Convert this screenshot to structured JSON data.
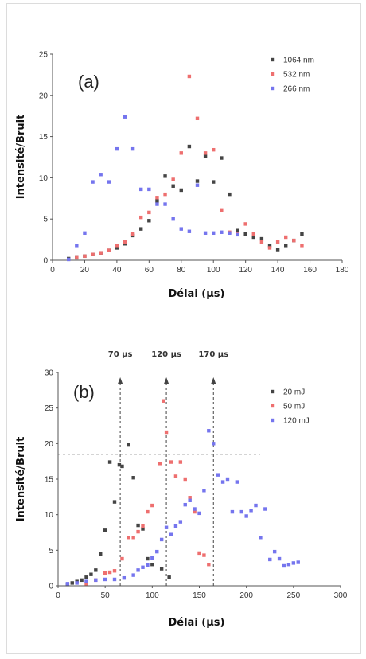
{
  "chart_data": [
    {
      "type": "scatter",
      "panel_label": "(a)",
      "xlabel": "Délai (µs)",
      "ylabel": "Intensité/Bruit",
      "xlim": [
        0,
        180
      ],
      "ylim": [
        0,
        25
      ],
      "xticks": [
        0,
        20,
        40,
        60,
        80,
        100,
        120,
        140,
        160,
        180
      ],
      "yticks": [
        0,
        5,
        10,
        15,
        20,
        25
      ],
      "legend_position": "top-right",
      "series": [
        {
          "name": "1064 nm",
          "color": "#444444",
          "points": [
            [
              10,
              0.2
            ],
            [
              15,
              0.3
            ],
            [
              20,
              0.5
            ],
            [
              25,
              0.7
            ],
            [
              30,
              0.9
            ],
            [
              35,
              1.2
            ],
            [
              40,
              1.5
            ],
            [
              45,
              2.0
            ],
            [
              50,
              3.0
            ],
            [
              55,
              3.8
            ],
            [
              60,
              4.8
            ],
            [
              65,
              7.2
            ],
            [
              70,
              10.2
            ],
            [
              75,
              9.0
            ],
            [
              80,
              8.5
            ],
            [
              85,
              13.8
            ],
            [
              90,
              9.6
            ],
            [
              95,
              12.6
            ],
            [
              100,
              9.5
            ],
            [
              105,
              12.4
            ],
            [
              110,
              8.0
            ],
            [
              115,
              3.6
            ],
            [
              120,
              3.2
            ],
            [
              125,
              2.8
            ],
            [
              130,
              2.6
            ],
            [
              135,
              1.8
            ],
            [
              140,
              1.3
            ],
            [
              145,
              1.8
            ],
            [
              150,
              2.4
            ],
            [
              155,
              3.2
            ]
          ]
        },
        {
          "name": "532 nm",
          "color": "#ee6f6f",
          "points": [
            [
              15,
              0.3
            ],
            [
              20,
              0.5
            ],
            [
              25,
              0.7
            ],
            [
              30,
              0.9
            ],
            [
              35,
              1.2
            ],
            [
              40,
              1.8
            ],
            [
              45,
              2.2
            ],
            [
              50,
              3.2
            ],
            [
              55,
              5.2
            ],
            [
              60,
              5.8
            ],
            [
              65,
              7.6
            ],
            [
              70,
              8.0
            ],
            [
              75,
              9.8
            ],
            [
              80,
              13.0
            ],
            [
              85,
              22.3
            ],
            [
              90,
              17.2
            ],
            [
              95,
              13.0
            ],
            [
              100,
              13.4
            ],
            [
              105,
              6.1
            ],
            [
              110,
              3.4
            ],
            [
              115,
              3.2
            ],
            [
              120,
              4.4
            ],
            [
              125,
              3.2
            ],
            [
              130,
              2.2
            ],
            [
              135,
              1.5
            ],
            [
              140,
              2.2
            ],
            [
              145,
              2.8
            ],
            [
              150,
              2.4
            ],
            [
              155,
              1.8
            ]
          ]
        },
        {
          "name": "266 nm",
          "color": "#7575ee",
          "points": [
            [
              10,
              0.1
            ],
            [
              15,
              1.8
            ],
            [
              20,
              3.3
            ],
            [
              25,
              9.5
            ],
            [
              30,
              10.4
            ],
            [
              35,
              9.5
            ],
            [
              40,
              13.5
            ],
            [
              45,
              17.4
            ],
            [
              50,
              13.5
            ],
            [
              55,
              8.6
            ],
            [
              60,
              8.6
            ],
            [
              65,
              6.8
            ],
            [
              70,
              6.8
            ],
            [
              75,
              5.0
            ],
            [
              80,
              3.8
            ],
            [
              85,
              3.5
            ],
            [
              90,
              9.1
            ],
            [
              95,
              3.3
            ],
            [
              100,
              3.3
            ],
            [
              105,
              3.4
            ],
            [
              110,
              3.3
            ],
            [
              115,
              3.1
            ]
          ]
        }
      ]
    },
    {
      "type": "scatter",
      "panel_label": "(b)",
      "xlabel": "Délai (µs)",
      "ylabel": "Intensité/Bruit",
      "xlim": [
        0,
        300
      ],
      "ylim": [
        0,
        30
      ],
      "xticks": [
        0,
        50,
        100,
        150,
        200,
        250,
        300
      ],
      "yticks": [
        0,
        5,
        10,
        15,
        20,
        25,
        30
      ],
      "legend_position": "top-right",
      "annotations": [
        {
          "label": "70 µs",
          "x": 66
        },
        {
          "label": "120 µs",
          "x": 115
        },
        {
          "label": "170 µs",
          "x": 165
        }
      ],
      "threshold_y": 18.5,
      "series": [
        {
          "name": "20 mJ",
          "color": "#444444",
          "points": [
            [
              10,
              0.2
            ],
            [
              15,
              0.4
            ],
            [
              20,
              0.6
            ],
            [
              25,
              0.8
            ],
            [
              30,
              1.2
            ],
            [
              35,
              1.6
            ],
            [
              40,
              2.2
            ],
            [
              45,
              4.5
            ],
            [
              50,
              7.8
            ],
            [
              55,
              17.4
            ],
            [
              60,
              11.8
            ],
            [
              65,
              17.0
            ],
            [
              68,
              16.8
            ],
            [
              75,
              19.8
            ],
            [
              80,
              15.2
            ],
            [
              85,
              8.5
            ],
            [
              90,
              8.0
            ],
            [
              95,
              3.8
            ],
            [
              100,
              3.0
            ],
            [
              110,
              2.4
            ],
            [
              118,
              1.2
            ]
          ]
        },
        {
          "name": "50 mJ",
          "color": "#ee6f6f",
          "points": [
            [
              30,
              0.3
            ],
            [
              40,
              0.8
            ],
            [
              50,
              1.8
            ],
            [
              55,
              1.9
            ],
            [
              60,
              2.1
            ],
            [
              68,
              3.8
            ],
            [
              75,
              6.8
            ],
            [
              80,
              6.8
            ],
            [
              85,
              7.6
            ],
            [
              90,
              8.4
            ],
            [
              95,
              10.4
            ],
            [
              100,
              11.3
            ],
            [
              108,
              17.2
            ],
            [
              112,
              26.0
            ],
            [
              115,
              21.6
            ],
            [
              120,
              17.4
            ],
            [
              125,
              15.4
            ],
            [
              130,
              17.4
            ],
            [
              135,
              15.0
            ],
            [
              140,
              12.4
            ],
            [
              145,
              10.4
            ],
            [
              150,
              4.6
            ],
            [
              155,
              4.3
            ],
            [
              160,
              3.0
            ]
          ]
        },
        {
          "name": "120 mJ",
          "color": "#7575ee",
          "points": [
            [
              10,
              0.3
            ],
            [
              20,
              0.4
            ],
            [
              30,
              0.6
            ],
            [
              40,
              0.8
            ],
            [
              50,
              0.9
            ],
            [
              60,
              0.9
            ],
            [
              70,
              1.1
            ],
            [
              80,
              1.5
            ],
            [
              85,
              2.2
            ],
            [
              90,
              2.6
            ],
            [
              95,
              2.9
            ],
            [
              100,
              3.9
            ],
            [
              105,
              4.8
            ],
            [
              110,
              6.5
            ],
            [
              115,
              8.2
            ],
            [
              120,
              7.2
            ],
            [
              125,
              8.4
            ],
            [
              130,
              9.0
            ],
            [
              135,
              11.4
            ],
            [
              140,
              12.0
            ],
            [
              145,
              10.8
            ],
            [
              150,
              10.2
            ],
            [
              155,
              13.4
            ],
            [
              160,
              21.8
            ],
            [
              165,
              20.0
            ],
            [
              170,
              15.6
            ],
            [
              175,
              14.6
            ],
            [
              180,
              15.0
            ],
            [
              185,
              10.4
            ],
            [
              190,
              14.6
            ],
            [
              195,
              10.4
            ],
            [
              200,
              9.8
            ],
            [
              205,
              10.6
            ],
            [
              210,
              11.3
            ],
            [
              215,
              6.8
            ],
            [
              220,
              10.8
            ],
            [
              225,
              3.7
            ],
            [
              230,
              4.8
            ],
            [
              235,
              3.8
            ],
            [
              240,
              2.8
            ],
            [
              245,
              3.0
            ],
            [
              250,
              3.2
            ],
            [
              255,
              3.3
            ]
          ]
        }
      ]
    }
  ]
}
